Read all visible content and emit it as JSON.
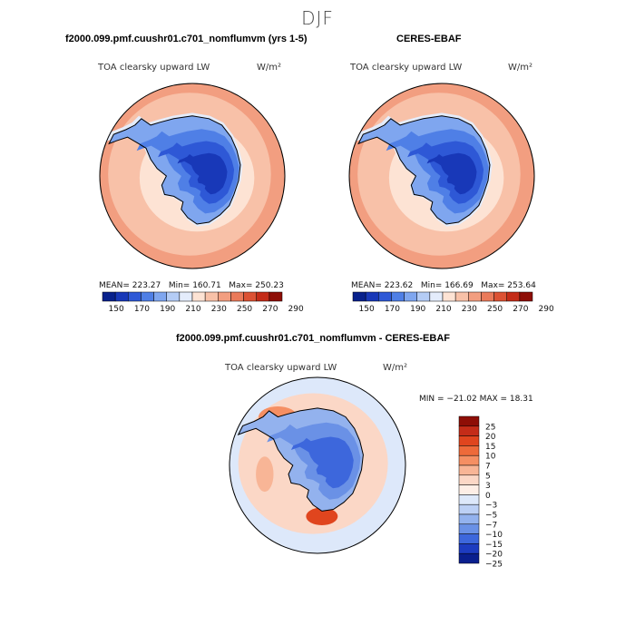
{
  "main_title": "DJF",
  "panels": [
    {
      "title": "f2000.099.pmf.cuushr01.c701_nomflumvm (yrs 1-5)",
      "variable": "TOA clearsky upward LW",
      "units": "W/m²",
      "stats": {
        "mean": "MEAN= 223.27",
        "min": "Min= 160.71",
        "max": "Max= 250.23"
      },
      "colorbar_labels": [
        "150",
        "170",
        "190",
        "210",
        "230",
        "250",
        "270",
        "290"
      ]
    },
    {
      "title": "CERES-EBAF",
      "variable": "TOA clearsky upward LW",
      "units": "W/m²",
      "stats": {
        "mean": "MEAN= 223.62",
        "min": "Min= 166.69",
        "max": "Max= 253.64"
      },
      "colorbar_labels": [
        "150",
        "170",
        "190",
        "210",
        "230",
        "250",
        "270",
        "290"
      ]
    }
  ],
  "diff_panel": {
    "title": "f2000.099.pmf.cuushr01.c701_nomflumvm - CERES-EBAF",
    "variable": "TOA clearsky upward LW",
    "units": "W/m²",
    "minmax": "MIN = −21.02 MAX =  18.31",
    "colorbar_labels": [
      "25",
      "20",
      "15",
      "10",
      "7",
      "5",
      "3",
      "0",
      "−3",
      "−5",
      "−7",
      "−10",
      "−15",
      "−20",
      "−25"
    ]
  },
  "colors": {
    "abs_scale": [
      "#08218c",
      "#1838b8",
      "#2e58d6",
      "#4f7fe6",
      "#7fa6ef",
      "#b4ccf5",
      "#e4ecfb",
      "#fde3d4",
      "#f8c1a8",
      "#f29e80",
      "#ea7a5a",
      "#dc5234",
      "#c42c18",
      "#8e0e06"
    ],
    "diff_scale": [
      "#8e0e06",
      "#c42c18",
      "#e0451e",
      "#ee6a3a",
      "#f58f63",
      "#f8b596",
      "#fbd7c6",
      "#fdeee6",
      "#dde8fa",
      "#bcd0f5",
      "#93b2ee",
      "#6a91e6",
      "#3d67dc",
      "#1d3cc0",
      "#0a1f8e"
    ],
    "land_outline": "#000000"
  }
}
